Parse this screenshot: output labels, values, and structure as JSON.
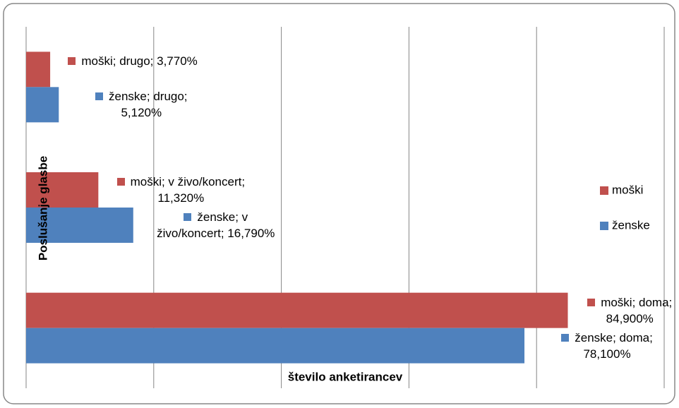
{
  "chart_data": {
    "type": "barh",
    "axis_labels": {
      "x": "število anketirancev",
      "y": "Poslušanje glasbe"
    },
    "categories": [
      null,
      null,
      null
    ],
    "series": [
      {
        "name": "moški",
        "color": "#c0504d",
        "values": [
          84.9,
          11.32,
          3.77
        ],
        "value_labels": [
          "moški; doma; 84,900%",
          "moški; v živo/koncert; 11,320%",
          "moški; drugo; 3,770%"
        ]
      },
      {
        "name": "ženske",
        "color": "#4f81bd",
        "values": [
          78.1,
          16.79,
          5.12
        ],
        "value_labels": [
          "ženske; doma; 78,100%",
          "ženske; v živo/koncert; 16,790%",
          "ženske; drugo; 5,120%"
        ]
      }
    ],
    "xlim": [
      0,
      100
    ],
    "xticks": [
      0,
      20,
      40,
      60,
      80,
      100
    ],
    "grid": true,
    "legend": "right"
  }
}
